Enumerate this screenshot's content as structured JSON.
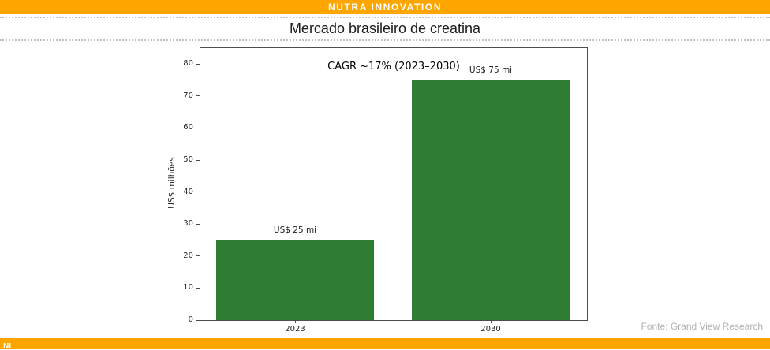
{
  "header": {
    "brand": "NUTRA INNOVATION"
  },
  "page_title": "Mercado brasileiro de creatina",
  "source_note": "Fonte: Grand View Research",
  "footer": {
    "brand_abbrev": "NI"
  },
  "colors": {
    "brand_orange": "#FFA500",
    "bar_green": "#2e7d32"
  },
  "chart_data": {
    "type": "bar",
    "title": "Mercado brasileiro de creatina",
    "categories": [
      "2023",
      "2030"
    ],
    "values": [
      25,
      75
    ],
    "bar_labels": [
      "US$ 25 mi",
      "US$ 75 mi"
    ],
    "annotation": "CAGR ~17% (2023–2030)",
    "xlabel": "",
    "ylabel": "US$ milhões",
    "ylim": [
      0,
      85
    ],
    "yticks": [
      0,
      10,
      20,
      30,
      40,
      50,
      60,
      70,
      80
    ],
    "grid": false,
    "legend": "none",
    "bar_color": "#2e7d32",
    "source": "Grand View Research"
  }
}
